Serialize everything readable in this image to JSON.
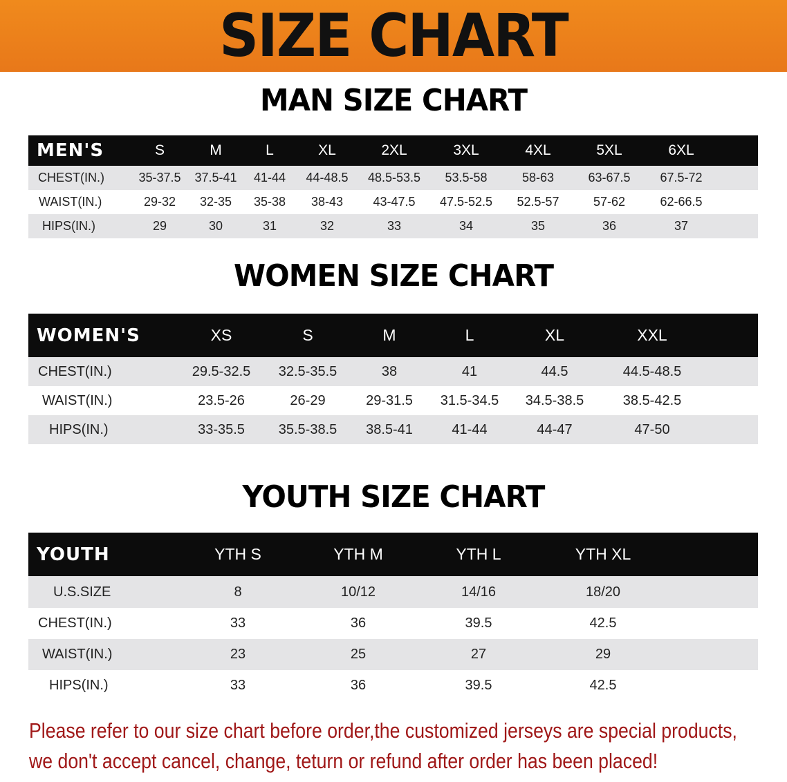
{
  "banner": {
    "title": "SIZE CHART",
    "color": "#ef841b"
  },
  "notice": {
    "line1": "Please refer to our size chart before order,the customized jerseys are special products,",
    "line2": "we don't accept cancel, change, teturn or refund after order has been placed!",
    "color": "#a01818"
  },
  "tables": [
    {
      "title": "MAN SIZE CHART",
      "header": "MEN'S",
      "sizes": [
        "S",
        "M",
        "L",
        "XL",
        "2XL",
        "3XL",
        "4XL",
        "5XL",
        "6XL"
      ],
      "rows": [
        {
          "label": "CHEST(IN.)",
          "values": [
            "35-37.5",
            "37.5-41",
            "41-44",
            "44-48.5",
            "48.5-53.5",
            "53.5-58",
            "58-63",
            "63-67.5",
            "67.5-72"
          ]
        },
        {
          "label": "WAIST(IN.)",
          "values": [
            "29-32",
            "32-35",
            "35-38",
            "38-43",
            "43-47.5",
            "47.5-52.5",
            "52.5-57",
            "57-62",
            "62-66.5"
          ]
        },
        {
          "label": "HIPS(IN.)",
          "values": [
            "29",
            "30",
            "31",
            "32",
            "33",
            "34",
            "35",
            "36",
            "37"
          ]
        }
      ]
    },
    {
      "title": "WOMEN SIZE CHART",
      "header": "WOMEN'S",
      "sizes": [
        "XS",
        "S",
        "M",
        "L",
        "XL",
        "XXL"
      ],
      "rows": [
        {
          "label": "CHEST(IN.)",
          "values": [
            "29.5-32.5",
            "32.5-35.5",
            "38",
            "41",
            "44.5",
            "44.5-48.5"
          ]
        },
        {
          "label": "WAIST(IN.)",
          "values": [
            "23.5-26",
            "26-29",
            "29-31.5",
            "31.5-34.5",
            "34.5-38.5",
            "38.5-42.5"
          ]
        },
        {
          "label": "HIPS(IN.)",
          "values": [
            "33-35.5",
            "35.5-38.5",
            "38.5-41",
            "41-44",
            "44-47",
            "47-50"
          ]
        }
      ]
    },
    {
      "title": "YOUTH SIZE CHART",
      "header": "YOUTH",
      "sizes": [
        "YTH S",
        "YTH M",
        "YTH L",
        "YTH XL"
      ],
      "rows": [
        {
          "label": "U.S.SIZE",
          "values": [
            "8",
            "10/12",
            "14/16",
            "18/20"
          ]
        },
        {
          "label": "CHEST(IN.)",
          "values": [
            "33",
            "36",
            "39.5",
            "42.5"
          ]
        },
        {
          "label": "WAIST(IN.)",
          "values": [
            "23",
            "25",
            "27",
            "29"
          ]
        },
        {
          "label": "HIPS(IN.)",
          "values": [
            "33",
            "36",
            "39.5",
            "42.5"
          ]
        }
      ]
    }
  ]
}
